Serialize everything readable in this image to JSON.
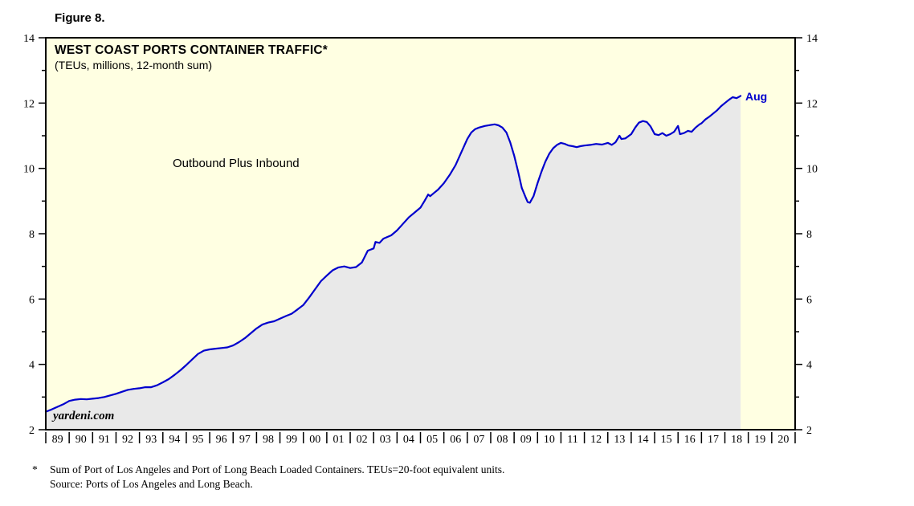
{
  "figure": {
    "label": "Figure 8."
  },
  "watermark": "yardeni.com",
  "footnote": {
    "asterisk": "*",
    "line1": "Sum of Port of Los Angeles and Port of Long Beach Loaded Containers. TEUs=20-foot equivalent units.",
    "line2": "Source: Ports of Los Angeles and Long Beach."
  },
  "colors": {
    "line": "#0000CD",
    "area_fill": "#E9E9E9",
    "plot_bg": "#FFFFE2",
    "frame": "#000000",
    "annotation_blue": "#0000CD"
  },
  "chart_data": {
    "type": "area",
    "title": "WEST COAST PORTS CONTAINER TRAFFIC*",
    "subtitle": "(TEUs, millions, 12-month sum)",
    "series_label": "Outbound Plus Inbound",
    "last_point_label": "Aug",
    "ylabel": "TEUs, millions, 12-month sum",
    "ylim": [
      2,
      14
    ],
    "y_major_ticks": [
      2,
      4,
      6,
      8,
      10,
      12,
      14
    ],
    "y_minor_ticks": [
      3,
      5,
      7,
      9,
      11,
      13
    ],
    "x_range": [
      1989,
      2021
    ],
    "x_tick_labels": [
      "89",
      "90",
      "91",
      "92",
      "93",
      "94",
      "95",
      "96",
      "97",
      "98",
      "99",
      "00",
      "01",
      "02",
      "03",
      "04",
      "05",
      "06",
      "07",
      "08",
      "09",
      "10",
      "11",
      "12",
      "13",
      "14",
      "15",
      "16",
      "17",
      "18",
      "19",
      "20"
    ],
    "grid": false,
    "legend_position": "none",
    "points": [
      [
        1989.0,
        2.55
      ],
      [
        1989.25,
        2.62
      ],
      [
        1989.5,
        2.7
      ],
      [
        1989.75,
        2.78
      ],
      [
        1990.0,
        2.88
      ],
      [
        1990.25,
        2.92
      ],
      [
        1990.5,
        2.94
      ],
      [
        1990.75,
        2.93
      ],
      [
        1991.0,
        2.95
      ],
      [
        1991.25,
        2.97
      ],
      [
        1991.5,
        3.0
      ],
      [
        1991.75,
        3.05
      ],
      [
        1992.0,
        3.1
      ],
      [
        1992.25,
        3.16
      ],
      [
        1992.5,
        3.22
      ],
      [
        1992.75,
        3.25
      ],
      [
        1993.0,
        3.27
      ],
      [
        1993.25,
        3.3
      ],
      [
        1993.5,
        3.3
      ],
      [
        1993.75,
        3.36
      ],
      [
        1994.0,
        3.45
      ],
      [
        1994.25,
        3.55
      ],
      [
        1994.5,
        3.68
      ],
      [
        1994.75,
        3.82
      ],
      [
        1995.0,
        3.98
      ],
      [
        1995.25,
        4.15
      ],
      [
        1995.5,
        4.32
      ],
      [
        1995.75,
        4.42
      ],
      [
        1996.0,
        4.46
      ],
      [
        1996.25,
        4.48
      ],
      [
        1996.5,
        4.5
      ],
      [
        1996.75,
        4.52
      ],
      [
        1997.0,
        4.58
      ],
      [
        1997.25,
        4.68
      ],
      [
        1997.5,
        4.8
      ],
      [
        1997.75,
        4.95
      ],
      [
        1998.0,
        5.1
      ],
      [
        1998.25,
        5.22
      ],
      [
        1998.5,
        5.28
      ],
      [
        1998.75,
        5.32
      ],
      [
        1999.0,
        5.4
      ],
      [
        1999.25,
        5.48
      ],
      [
        1999.5,
        5.55
      ],
      [
        1999.75,
        5.68
      ],
      [
        2000.0,
        5.82
      ],
      [
        2000.25,
        6.05
      ],
      [
        2000.5,
        6.3
      ],
      [
        2000.75,
        6.55
      ],
      [
        2001.0,
        6.72
      ],
      [
        2001.25,
        6.88
      ],
      [
        2001.5,
        6.97
      ],
      [
        2001.75,
        7.0
      ],
      [
        2002.0,
        6.95
      ],
      [
        2002.25,
        6.98
      ],
      [
        2002.5,
        7.12
      ],
      [
        2002.75,
        7.48
      ],
      [
        2003.0,
        7.55
      ],
      [
        2003.08,
        7.75
      ],
      [
        2003.25,
        7.72
      ],
      [
        2003.42,
        7.85
      ],
      [
        2003.58,
        7.9
      ],
      [
        2003.75,
        7.95
      ],
      [
        2004.0,
        8.1
      ],
      [
        2004.25,
        8.3
      ],
      [
        2004.5,
        8.5
      ],
      [
        2004.75,
        8.65
      ],
      [
        2005.0,
        8.8
      ],
      [
        2005.17,
        9.0
      ],
      [
        2005.33,
        9.2
      ],
      [
        2005.42,
        9.15
      ],
      [
        2005.58,
        9.25
      ],
      [
        2005.75,
        9.35
      ],
      [
        2006.0,
        9.55
      ],
      [
        2006.25,
        9.8
      ],
      [
        2006.5,
        10.1
      ],
      [
        2006.75,
        10.5
      ],
      [
        2007.0,
        10.9
      ],
      [
        2007.17,
        11.1
      ],
      [
        2007.33,
        11.2
      ],
      [
        2007.5,
        11.25
      ],
      [
        2007.75,
        11.3
      ],
      [
        2008.0,
        11.33
      ],
      [
        2008.17,
        11.35
      ],
      [
        2008.33,
        11.32
      ],
      [
        2008.5,
        11.25
      ],
      [
        2008.67,
        11.1
      ],
      [
        2008.83,
        10.8
      ],
      [
        2009.0,
        10.4
      ],
      [
        2009.17,
        9.9
      ],
      [
        2009.33,
        9.4
      ],
      [
        2009.5,
        9.1
      ],
      [
        2009.58,
        8.97
      ],
      [
        2009.67,
        8.95
      ],
      [
        2009.83,
        9.15
      ],
      [
        2010.0,
        9.55
      ],
      [
        2010.17,
        9.9
      ],
      [
        2010.33,
        10.2
      ],
      [
        2010.5,
        10.45
      ],
      [
        2010.67,
        10.62
      ],
      [
        2010.83,
        10.72
      ],
      [
        2011.0,
        10.78
      ],
      [
        2011.17,
        10.75
      ],
      [
        2011.33,
        10.7
      ],
      [
        2011.5,
        10.68
      ],
      [
        2011.67,
        10.65
      ],
      [
        2011.83,
        10.68
      ],
      [
        2012.0,
        10.7
      ],
      [
        2012.25,
        10.72
      ],
      [
        2012.5,
        10.75
      ],
      [
        2012.75,
        10.73
      ],
      [
        2013.0,
        10.78
      ],
      [
        2013.17,
        10.72
      ],
      [
        2013.33,
        10.8
      ],
      [
        2013.5,
        11.0
      ],
      [
        2013.58,
        10.9
      ],
      [
        2013.75,
        10.92
      ],
      [
        2014.0,
        11.05
      ],
      [
        2014.17,
        11.25
      ],
      [
        2014.33,
        11.4
      ],
      [
        2014.5,
        11.45
      ],
      [
        2014.67,
        11.42
      ],
      [
        2014.83,
        11.28
      ],
      [
        2015.0,
        11.05
      ],
      [
        2015.17,
        11.02
      ],
      [
        2015.33,
        11.08
      ],
      [
        2015.5,
        11.0
      ],
      [
        2015.67,
        11.05
      ],
      [
        2015.83,
        11.12
      ],
      [
        2016.0,
        11.3
      ],
      [
        2016.08,
        11.05
      ],
      [
        2016.25,
        11.08
      ],
      [
        2016.42,
        11.15
      ],
      [
        2016.58,
        11.12
      ],
      [
        2016.75,
        11.25
      ],
      [
        2016.92,
        11.35
      ],
      [
        2017.0,
        11.38
      ],
      [
        2017.17,
        11.5
      ],
      [
        2017.33,
        11.58
      ],
      [
        2017.5,
        11.68
      ],
      [
        2017.67,
        11.78
      ],
      [
        2017.83,
        11.9
      ],
      [
        2018.0,
        12.0
      ],
      [
        2018.17,
        12.1
      ],
      [
        2018.33,
        12.18
      ],
      [
        2018.5,
        12.15
      ],
      [
        2018.67,
        12.22
      ]
    ]
  }
}
